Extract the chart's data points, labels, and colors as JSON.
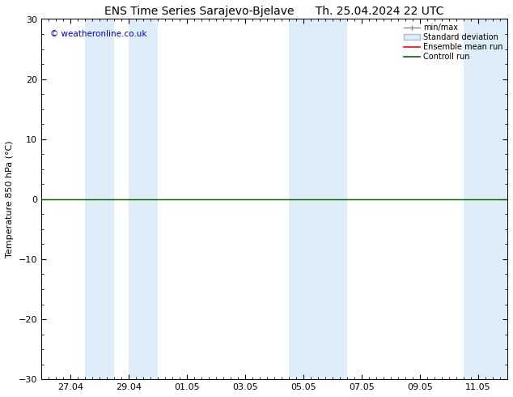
{
  "title_left": "ENS Time Series Sarajevo-Bjelave",
  "title_right": "Th. 25.04.2024 22 UTC",
  "ylabel": "Temperature 850 hPa (°C)",
  "watermark": "© weatheronline.co.uk",
  "ylim": [
    -30,
    30
  ],
  "yticks": [
    -30,
    -20,
    -10,
    0,
    10,
    20,
    30
  ],
  "x_tick_labels": [
    "27.04",
    "29.04",
    "01.05",
    "03.05",
    "05.05",
    "07.05",
    "09.05",
    "11.05"
  ],
  "x_tick_positions": [
    1,
    3,
    5,
    7,
    9,
    11,
    13,
    15
  ],
  "shaded_spans": [
    [
      1.5,
      2.5
    ],
    [
      3.0,
      4.0
    ],
    [
      8.5,
      9.5
    ],
    [
      9.5,
      10.5
    ],
    [
      14.5,
      16.0
    ]
  ],
  "shaded_color": "#ddeef8",
  "background_color": "#ffffff",
  "plot_bg_color": "#ffffff",
  "zero_line_color": "#000000",
  "ensemble_mean_color": "#ff0000",
  "control_run_color": "#006600",
  "legend_entries": [
    "min/max",
    "Standard deviation",
    "Ensemble mean run",
    "Controll run"
  ],
  "title_fontsize": 10,
  "axis_fontsize": 8,
  "tick_fontsize": 8,
  "xlim": [
    0,
    16
  ],
  "ensemble_mean_y": 0.0,
  "control_run_y": 0.0
}
